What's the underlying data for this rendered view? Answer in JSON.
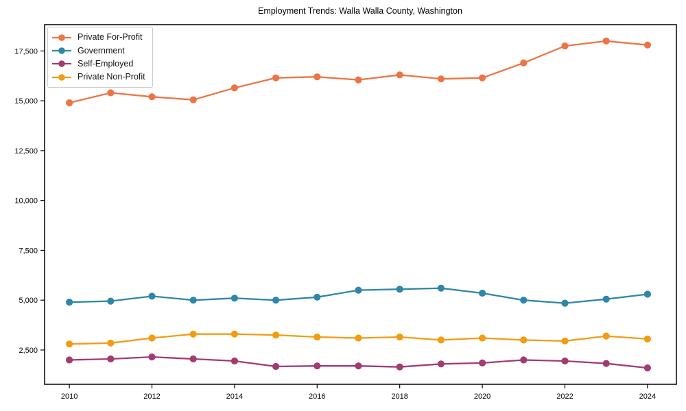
{
  "title": "Employment Trends: Walla Walla County, Washington",
  "chart_data": {
    "type": "line",
    "title": "Employment Trends: Walla Walla County, Washington",
    "xlabel": "",
    "ylabel": "",
    "grid": false,
    "legend_position": "upper-left",
    "x": [
      2010,
      2011,
      2012,
      2013,
      2014,
      2015,
      2016,
      2017,
      2018,
      2019,
      2020,
      2021,
      2022,
      2023,
      2024
    ],
    "series": [
      {
        "name": "Private For-Profit",
        "color": "#EC7445",
        "values": [
          14900,
          15400,
          15200,
          15050,
          15650,
          16150,
          16200,
          16050,
          16300,
          16100,
          16150,
          16900,
          17750,
          18000,
          17800
        ]
      },
      {
        "name": "Government",
        "color": "#2E86A8",
        "values": [
          4900,
          4950,
          5200,
          5000,
          5100,
          5000,
          5150,
          5500,
          5550,
          5600,
          5350,
          5000,
          4850,
          5050,
          5300
        ]
      },
      {
        "name": "Self-Employed",
        "color": "#A23B72",
        "values": [
          2000,
          2050,
          2150,
          2050,
          1950,
          1675,
          1700,
          1700,
          1650,
          1800,
          1850,
          2000,
          1950,
          1825,
          1600
        ]
      },
      {
        "name": "Private Non-Profit",
        "color": "#F29C11",
        "values": [
          2800,
          2850,
          3100,
          3300,
          3300,
          3250,
          3150,
          3100,
          3150,
          3000,
          3100,
          3000,
          2950,
          3200,
          3050
        ]
      }
    ],
    "xticks": [
      2010,
      2012,
      2014,
      2016,
      2018,
      2020,
      2022,
      2024
    ],
    "yticks": [
      2500,
      5000,
      7500,
      10000,
      12500,
      15000,
      17500
    ],
    "xlim": [
      2009.4,
      2024.7
    ],
    "ylim": [
      780,
      18820
    ]
  }
}
